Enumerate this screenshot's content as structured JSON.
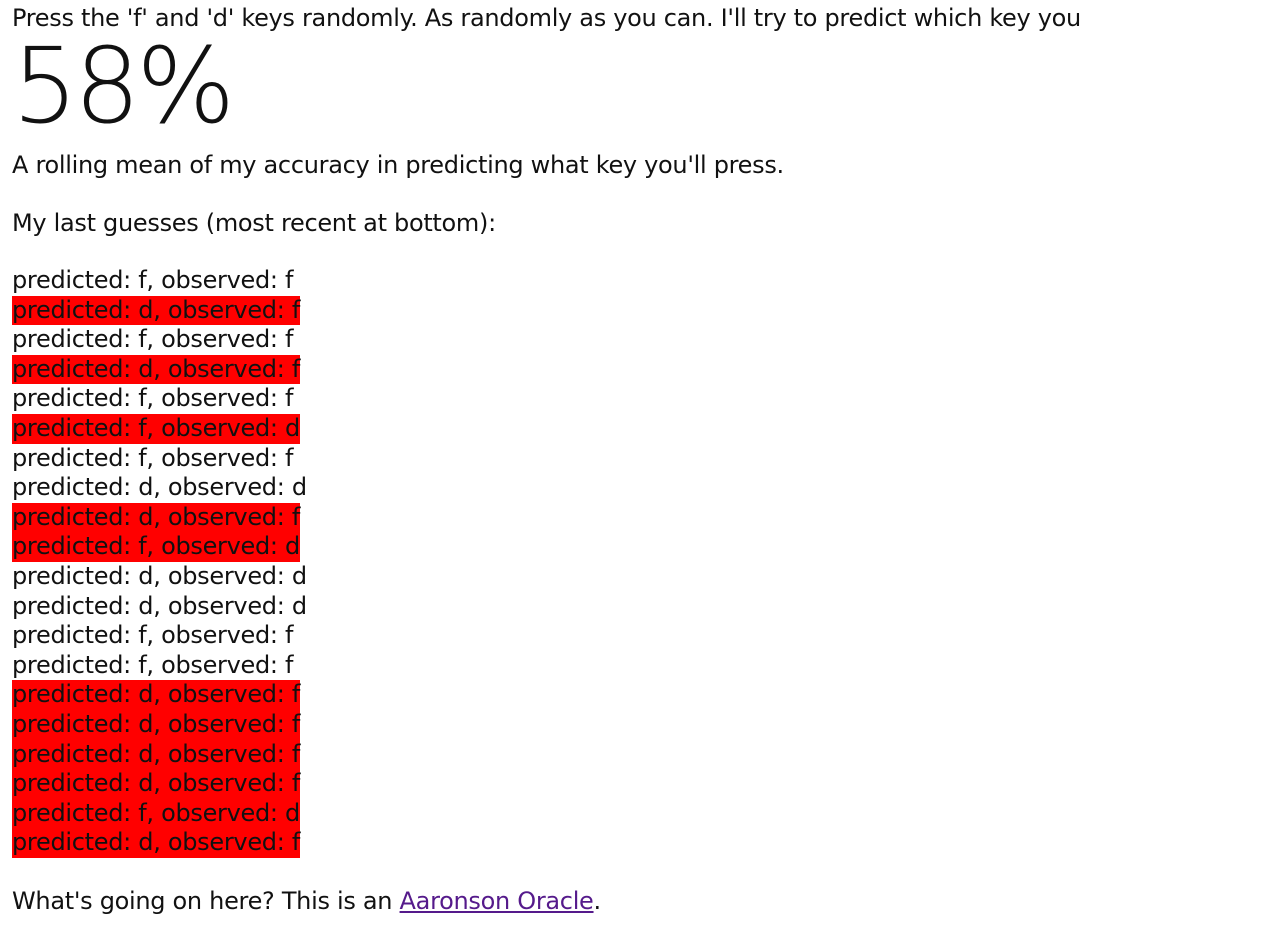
{
  "intro": "Press the 'f' and 'd' keys randomly. As randomly as you can. I'll try to predict which key you",
  "accuracy": "58%",
  "description": "A rolling mean of my accuracy in predicting what key you'll press.",
  "last_guesses_label": "My last guesses (most recent at bottom):",
  "miss_color": "#ff0000",
  "guesses": [
    {
      "text": "predicted: f, observed: f",
      "correct": true
    },
    {
      "text": "predicted: d, observed: f",
      "correct": false
    },
    {
      "text": "predicted: f, observed: f",
      "correct": true
    },
    {
      "text": "predicted: d, observed: f",
      "correct": false
    },
    {
      "text": "predicted: f, observed: f",
      "correct": true
    },
    {
      "text": "predicted: f, observed: d",
      "correct": false
    },
    {
      "text": "predicted: f, observed: f",
      "correct": true
    },
    {
      "text": "predicted: d, observed: d",
      "correct": true
    },
    {
      "text": "predicted: d, observed: f",
      "correct": false
    },
    {
      "text": "predicted: f, observed: d",
      "correct": false
    },
    {
      "text": "predicted: d, observed: d",
      "correct": true
    },
    {
      "text": "predicted: d, observed: d",
      "correct": true
    },
    {
      "text": "predicted: f, observed: f",
      "correct": true
    },
    {
      "text": "predicted: f, observed: f",
      "correct": true
    },
    {
      "text": "predicted: d, observed: f",
      "correct": false
    },
    {
      "text": "predicted: d, observed: f",
      "correct": false
    },
    {
      "text": "predicted: d, observed: f",
      "correct": false
    },
    {
      "text": "predicted: d, observed: f",
      "correct": false
    },
    {
      "text": "predicted: f, observed: d",
      "correct": false
    },
    {
      "text": "predicted: d, observed: f",
      "correct": false
    }
  ],
  "footer": {
    "prefix": "What's going on here? This is an ",
    "link_text": "Aaronson Oracle",
    "suffix": "."
  }
}
